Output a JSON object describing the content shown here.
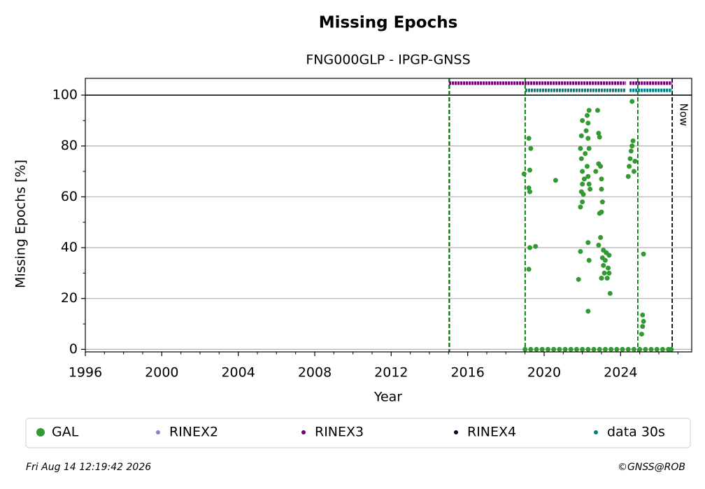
{
  "chart_data": {
    "type": "scatter",
    "title": "Missing Epochs",
    "subtitle": "FNG000GLP - IPGP-GNSS",
    "xlabel": "Year",
    "ylabel": "Missing Epochs [%]",
    "xlim": [
      1996,
      2027.72
    ],
    "ylim": [
      -1,
      106.6
    ],
    "xticks": [
      1996,
      2000,
      2004,
      2008,
      2012,
      2016,
      2020,
      2024
    ],
    "xminorticks": [
      1997,
      1998,
      1999,
      2001,
      2002,
      2003,
      2005,
      2006,
      2007,
      2009,
      2010,
      2011,
      2013,
      2014,
      2015,
      2017,
      2018,
      2019,
      2021,
      2022,
      2023,
      2025,
      2026,
      2027
    ],
    "yticks": [
      0,
      20,
      40,
      60,
      80,
      100
    ],
    "yminorticks": [
      10,
      30,
      50,
      70,
      90
    ],
    "grid": true,
    "hline": 100,
    "vlines": [
      {
        "x": 2015.03,
        "color": "#cc0000"
      },
      {
        "x": 2015.05,
        "color": "#008000"
      },
      {
        "x": 2019.01,
        "color": "#008000"
      },
      {
        "x": 2024.9,
        "color": "#008000"
      },
      {
        "x": 2026.7,
        "color": "#000000",
        "label": "Now"
      }
    ],
    "series": [
      {
        "name": "GAL",
        "color": "#339933",
        "x": [
          2018.95,
          2019.2,
          2019.25,
          2019.2,
          2019.25,
          2019.3,
          2019.25,
          2019.2,
          2019.55,
          2020.6,
          2021.8,
          2021.9,
          2021.9,
          2021.95,
          2022.0,
          2021.95,
          2022.0,
          2022.0,
          2021.95,
          2022.0,
          2021.9,
          2022.05,
          2022.1,
          2022.15,
          2022.2,
          2022.25,
          2022.3,
          2022.35,
          2022.3,
          2022.35,
          2022.25,
          2022.3,
          2022.35,
          2022.4,
          2022.3,
          2022.35,
          2022.3,
          2022.7,
          2022.8,
          2022.85,
          2022.9,
          2022.85,
          2022.95,
          2023.0,
          2023.0,
          2023.05,
          2023.0,
          2022.9,
          2022.95,
          2022.85,
          2023.1,
          2023.05,
          2023.1,
          2023.15,
          2023.2,
          2023.25,
          2023.3,
          2023.35,
          2023.4,
          2023.45,
          2023.4,
          2023.0,
          2024.4,
          2024.45,
          2024.5,
          2024.55,
          2024.6,
          2024.65,
          2024.7,
          2024.6,
          2024.75,
          2025.2,
          2025.15,
          2025.2,
          2025.15,
          2025.1,
          2019.0,
          2019.3,
          2019.6,
          2019.9,
          2020.2,
          2020.5,
          2020.8,
          2021.1,
          2021.4,
          2021.7,
          2022.0,
          2022.3,
          2022.6,
          2022.9,
          2023.2,
          2023.5,
          2023.8,
          2024.1,
          2024.4,
          2024.7,
          2025.0,
          2025.3,
          2025.6,
          2025.9,
          2026.2,
          2026.5,
          2026.65
        ],
        "values": [
          69,
          83,
          70.5,
          63.5,
          62,
          79,
          40,
          31.5,
          40.5,
          66.5,
          27.5,
          38.5,
          79,
          84,
          90,
          75,
          70,
          65,
          62,
          58,
          56,
          61,
          67,
          77,
          86,
          92,
          89,
          94,
          83,
          79,
          72,
          68,
          65,
          63,
          42,
          35,
          15,
          70,
          94,
          85,
          83.5,
          73,
          72,
          67,
          63,
          58,
          54,
          53.5,
          44,
          41,
          39,
          36,
          33,
          30,
          35,
          38,
          28,
          32,
          37,
          22,
          30,
          28,
          68,
          72,
          75,
          78,
          80,
          82,
          70,
          97.5,
          74,
          37.5,
          13.5,
          11,
          9,
          6,
          0,
          0,
          0,
          0,
          0,
          0,
          0,
          0,
          0,
          0,
          0,
          0,
          0,
          0,
          0,
          0,
          0,
          0,
          0,
          0,
          0,
          0,
          0,
          0,
          0,
          0,
          0
        ]
      },
      {
        "name": "RINEX2",
        "color": "#8a7fc0",
        "values": [],
        "intervals": []
      },
      {
        "name": "RINEX3",
        "color": "#6b006b",
        "values": [
          104.7
        ],
        "intervals": [
          [
            2015.03,
            2024.28
          ],
          [
            2024.47,
            2026.7
          ]
        ]
      },
      {
        "name": "RINEX4",
        "color": "#1a0020",
        "values": [],
        "intervals": []
      },
      {
        "name": "data 30s",
        "color": "#007f7f",
        "values": [
          101.9
        ],
        "intervals": [
          [
            2019.01,
            2024.28
          ],
          [
            2024.47,
            2026.7
          ]
        ]
      }
    ],
    "footer_left": "Fri Aug 14 12:19:42 2026",
    "footer_right": "©GNSS@ROB"
  }
}
